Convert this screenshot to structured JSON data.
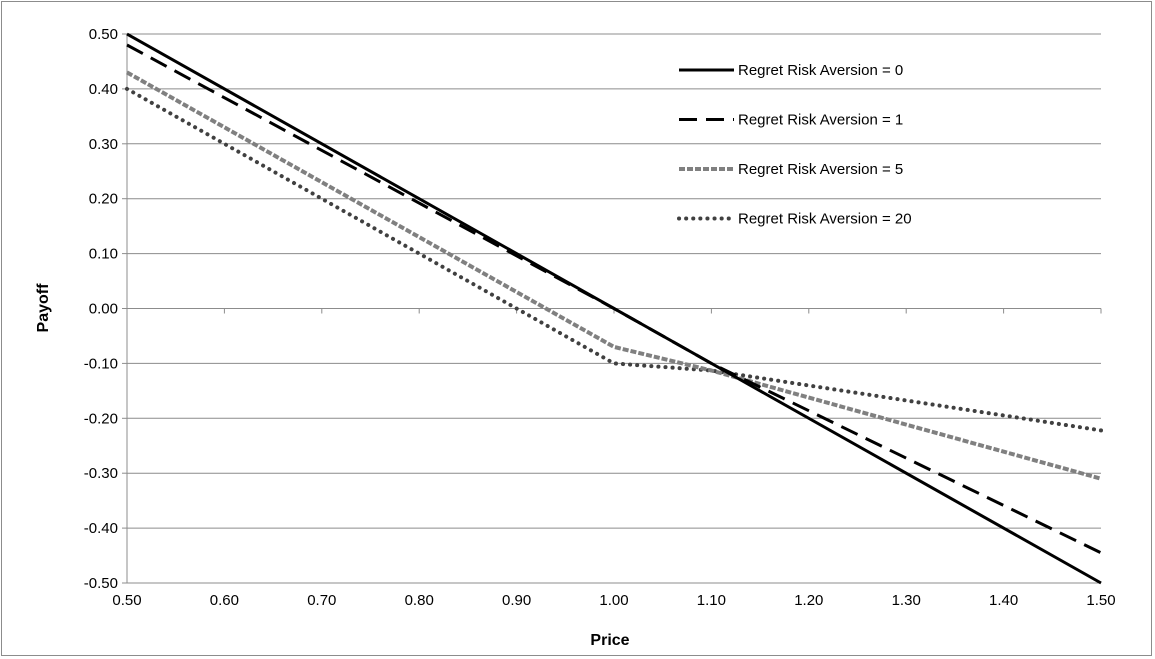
{
  "chart_data": {
    "type": "line",
    "title": "",
    "xlabel": "Price",
    "ylabel": "Payoff",
    "xlim": [
      0.5,
      1.5
    ],
    "ylim": [
      -0.5,
      0.5
    ],
    "x_ticks": [
      "0.50",
      "0.60",
      "0.70",
      "0.80",
      "0.90",
      "1.00",
      "1.10",
      "1.20",
      "1.30",
      "1.40",
      "1.50"
    ],
    "y_ticks": [
      "0.50",
      "0.40",
      "0.30",
      "0.20",
      "0.10",
      "0.00",
      "-0.10",
      "-0.20",
      "-0.30",
      "-0.40",
      "-0.50"
    ],
    "grid": "horizontal",
    "legend_position": "top-right",
    "series": [
      {
        "name": "Regret Risk Aversion = 0",
        "style": "solid",
        "color": "#000000",
        "x": [
          0.5,
          1.5
        ],
        "y": [
          0.5,
          -0.5
        ]
      },
      {
        "name": "Regret Risk Aversion = 1",
        "style": "dashed",
        "color": "#000000",
        "x": [
          0.5,
          1.0,
          1.1,
          1.5
        ],
        "y": [
          0.48,
          0.0,
          -0.1,
          -0.445
        ]
      },
      {
        "name": "Regret Risk Aversion = 5",
        "style": "dashed-gray",
        "color": "#808080",
        "x": [
          0.5,
          1.0,
          1.1,
          1.5
        ],
        "y": [
          0.43,
          -0.07,
          -0.113,
          -0.31
        ]
      },
      {
        "name": "Regret Risk Aversion = 20",
        "style": "dotted",
        "color": "#404040",
        "x": [
          0.5,
          1.0,
          1.1,
          1.5
        ],
        "y": [
          0.4,
          -0.1,
          -0.113,
          -0.222
        ]
      }
    ]
  }
}
